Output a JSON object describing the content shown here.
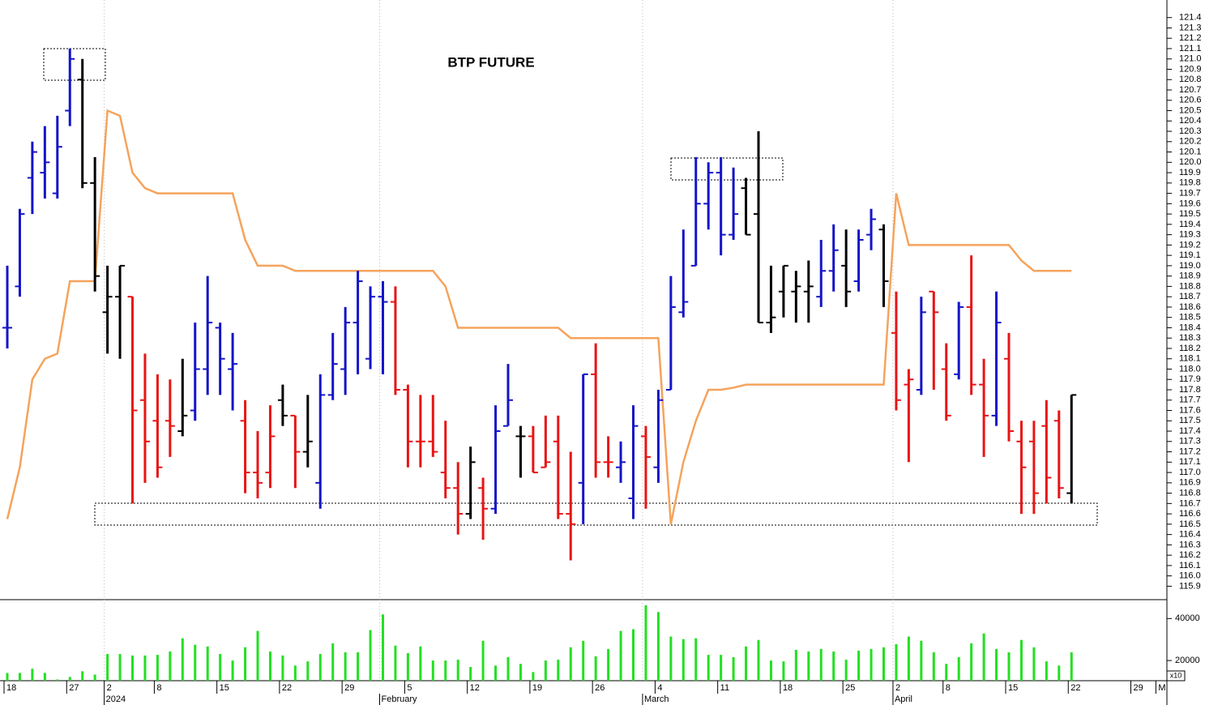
{
  "chart_data": [
    {
      "type": "ohlc",
      "title": "BTP FUTURE",
      "categories": [
        "18",
        null,
        null,
        null,
        null,
        "27",
        null,
        null,
        "2",
        null,
        null,
        null,
        "8",
        null,
        null,
        null,
        null,
        "15",
        null,
        null,
        null,
        null,
        "22",
        null,
        null,
        null,
        null,
        "29",
        null,
        null,
        null,
        null,
        "5",
        null,
        null,
        null,
        null,
        "12",
        null,
        null,
        null,
        null,
        "19",
        null,
        null,
        null,
        null,
        "26",
        null,
        null,
        null,
        null,
        "4",
        null,
        null,
        null,
        null,
        "11",
        null,
        null,
        null,
        null,
        "18",
        null,
        null,
        null,
        null,
        "25",
        null,
        null,
        null,
        "2",
        null,
        null,
        null,
        "8",
        null,
        null,
        null,
        null,
        "15",
        null,
        null,
        null,
        null,
        "22",
        null,
        null,
        null,
        null,
        "29",
        null,
        "M"
      ],
      "months": [
        null,
        null,
        null,
        null,
        null,
        null,
        null,
        null,
        "2024",
        null,
        null,
        null,
        null,
        null,
        null,
        null,
        null,
        null,
        null,
        null,
        null,
        null,
        null,
        null,
        null,
        null,
        null,
        null,
        null,
        null,
        "February",
        null,
        null,
        null,
        null,
        null,
        null,
        null,
        null,
        null,
        null,
        null,
        null,
        null,
        null,
        null,
        null,
        null,
        null,
        null,
        null,
        "March",
        null,
        null,
        null,
        null,
        null,
        null,
        null,
        null,
        null,
        null,
        null,
        null,
        null,
        null,
        null,
        null,
        null,
        null,
        null,
        "April",
        null,
        null,
        null,
        null,
        null,
        null,
        null,
        null,
        null,
        null,
        null,
        null,
        null,
        null,
        null,
        null,
        null,
        null,
        null,
        null,
        null
      ],
      "open": [
        118.4,
        118.8,
        119.85,
        119.9,
        119.7,
        120.5,
        120.8,
        119.8,
        118.55,
        118.7,
        118.7,
        117.7,
        117.5,
        117.5,
        117.4,
        117.6,
        118.0,
        118.4,
        118.0,
        117.5,
        117.0,
        117.0,
        117.7,
        117.55,
        117.2,
        116.9,
        117.75,
        118.0,
        118.45,
        118.1,
        118.7,
        118.65,
        117.8,
        117.3,
        117.3,
        117.0,
        116.85,
        116.6,
        116.85,
        116.65,
        117.45,
        117.35,
        117.35,
        117.05,
        117.3,
        116.6,
        116.9,
        117.95,
        117.1,
        117.05,
        116.75,
        117.35,
        117.05,
        117.8,
        118.55,
        119.0,
        119.6,
        119.9,
        119.3,
        119.75,
        119.5,
        118.45,
        118.75,
        118.75,
        118.75,
        118.7,
        118.95,
        119.0,
        118.85,
        119.3,
        119.35,
        118.35,
        117.85,
        117.8,
        118.75,
        118.0,
        117.95,
        118.6,
        117.85,
        117.55,
        118.1,
        117.3,
        117.3,
        117.45,
        117.5,
        116.8,
        null,
        null,
        null,
        null,
        null,
        null,
        null
      ],
      "high": [
        119.0,
        119.55,
        120.2,
        120.35,
        120.45,
        121.1,
        121.0,
        120.05,
        119.0,
        119.0,
        118.7,
        118.15,
        117.95,
        117.9,
        118.1,
        118.45,
        118.9,
        118.45,
        118.35,
        117.7,
        117.4,
        117.65,
        117.85,
        117.55,
        117.75,
        117.95,
        118.35,
        118.6,
        118.95,
        118.8,
        118.85,
        118.8,
        117.85,
        117.75,
        117.75,
        117.5,
        117.1,
        117.25,
        116.95,
        117.65,
        118.05,
        117.45,
        117.45,
        117.55,
        117.55,
        117.2,
        117.95,
        118.25,
        117.35,
        117.3,
        117.65,
        117.45,
        117.8,
        118.9,
        119.35,
        120.05,
        120.0,
        120.05,
        119.95,
        119.85,
        120.3,
        119.0,
        119.0,
        118.95,
        119.05,
        119.25,
        119.4,
        119.35,
        119.35,
        119.55,
        119.4,
        118.75,
        118.0,
        118.7,
        118.75,
        118.25,
        118.65,
        119.1,
        118.1,
        118.75,
        118.35,
        117.5,
        117.5,
        117.7,
        117.6,
        117.75,
        null,
        null,
        null,
        null,
        null,
        null,
        null
      ],
      "low": [
        118.2,
        118.7,
        119.5,
        119.65,
        119.65,
        120.35,
        119.75,
        118.75,
        118.15,
        118.1,
        116.7,
        116.9,
        116.95,
        117.15,
        117.35,
        117.5,
        117.75,
        117.75,
        117.6,
        116.8,
        116.75,
        116.85,
        117.45,
        116.85,
        117.05,
        116.65,
        117.7,
        117.75,
        117.95,
        118.0,
        117.95,
        117.75,
        117.05,
        117.05,
        117.15,
        116.75,
        116.4,
        116.55,
        116.35,
        116.6,
        117.45,
        116.95,
        117.0,
        117.05,
        116.55,
        116.15,
        116.5,
        116.95,
        116.95,
        116.9,
        116.55,
        116.65,
        116.9,
        117.8,
        118.5,
        119.0,
        119.35,
        119.1,
        119.25,
        119.3,
        118.45,
        118.35,
        118.5,
        118.45,
        118.45,
        118.6,
        118.75,
        118.6,
        118.75,
        119.15,
        118.6,
        117.6,
        117.1,
        117.75,
        117.8,
        117.5,
        117.9,
        117.75,
        117.15,
        117.45,
        117.3,
        116.6,
        116.6,
        116.7,
        116.75,
        116.7,
        null,
        null,
        null,
        null,
        null,
        null,
        null
      ],
      "close": [
        118.4,
        119.5,
        120.1,
        120.0,
        120.15,
        121.0,
        119.8,
        118.9,
        118.7,
        119.0,
        117.6,
        117.3,
        117.05,
        117.45,
        117.55,
        118.0,
        118.45,
        118.1,
        118.05,
        117.0,
        116.9,
        117.35,
        117.55,
        117.2,
        117.3,
        117.75,
        118.05,
        118.45,
        118.85,
        118.7,
        118.65,
        117.8,
        117.3,
        117.3,
        117.2,
        116.85,
        116.6,
        117.1,
        116.65,
        117.4,
        117.7,
        117.35,
        117.0,
        117.1,
        116.6,
        116.5,
        117.95,
        117.1,
        117.1,
        117.1,
        117.45,
        117.15,
        117.7,
        118.6,
        118.65,
        119.6,
        119.9,
        119.3,
        119.5,
        119.3,
        118.45,
        118.5,
        119.0,
        118.8,
        118.8,
        118.95,
        119.15,
        118.75,
        119.25,
        119.45,
        118.85,
        117.7,
        117.9,
        118.55,
        118.55,
        117.55,
        118.6,
        117.85,
        117.55,
        118.45,
        117.4,
        117.05,
        116.8,
        116.95,
        116.85,
        117.75,
        null,
        null,
        null,
        null,
        null,
        null,
        null
      ],
      "colors": [
        "#1414c8",
        "#1414c8",
        "#1414c8",
        "#1414c8",
        "#1414c8",
        "#1414c8",
        "#000000",
        "#000000",
        "#000000",
        "#000000",
        "#e81414",
        "#e81414",
        "#e81414",
        "#e81414",
        "#000000",
        "#1414c8",
        "#1414c8",
        "#1414c8",
        "#1414c8",
        "#e81414",
        "#e81414",
        "#e81414",
        "#000000",
        "#e81414",
        "#000000",
        "#1414c8",
        "#1414c8",
        "#1414c8",
        "#1414c8",
        "#1414c8",
        "#1414c8",
        "#e81414",
        "#e81414",
        "#e81414",
        "#e81414",
        "#e81414",
        "#e81414",
        "#000000",
        "#e81414",
        "#1414c8",
        "#1414c8",
        "#000000",
        "#e81414",
        "#e81414",
        "#e81414",
        "#e81414",
        "#1414c8",
        "#e81414",
        "#e81414",
        "#1414c8",
        "#1414c8",
        "#e81414",
        "#1414c8",
        "#1414c8",
        "#1414c8",
        "#1414c8",
        "#1414c8",
        "#1414c8",
        "#1414c8",
        "#000000",
        "#000000",
        "#000000",
        "#000000",
        "#000000",
        "#000000",
        "#1414c8",
        "#1414c8",
        "#000000",
        "#1414c8",
        "#1414c8",
        "#000000",
        "#e81414",
        "#e81414",
        "#1414c8",
        "#e81414",
        "#e81414",
        "#1414c8",
        "#e81414",
        "#e81414",
        "#1414c8",
        "#e81414",
        "#e81414",
        "#e81414",
        "#e81414",
        "#e81414",
        "#000000",
        null,
        null,
        null,
        null,
        null,
        null,
        null
      ],
      "overlay": {
        "color": "#f5a35c",
        "values": [
          116.55,
          117.05,
          117.9,
          118.1,
          118.15,
          118.85,
          118.85,
          118.85,
          120.5,
          120.45,
          119.9,
          119.75,
          119.7,
          119.7,
          119.7,
          119.7,
          119.7,
          119.7,
          119.7,
          119.25,
          119.0,
          119.0,
          119.0,
          118.95,
          118.95,
          118.95,
          118.95,
          118.95,
          118.95,
          118.95,
          118.95,
          118.95,
          118.95,
          118.95,
          118.95,
          118.8,
          118.4,
          118.4,
          118.4,
          118.4,
          118.4,
          118.4,
          118.4,
          118.4,
          118.4,
          118.3,
          118.3,
          118.3,
          118.3,
          118.3,
          118.3,
          118.3,
          118.3,
          116.5,
          117.1,
          117.5,
          117.8,
          117.8,
          117.82,
          117.85,
          117.85,
          117.85,
          117.85,
          117.85,
          117.85,
          117.85,
          117.85,
          117.85,
          117.85,
          117.85,
          117.85,
          119.7,
          119.2,
          119.2,
          119.2,
          119.2,
          119.2,
          119.2,
          119.2,
          119.2,
          119.2,
          119.05,
          118.95,
          118.95,
          118.95,
          118.95,
          null,
          null,
          null,
          null,
          null,
          null,
          null
        ]
      },
      "ylim": [
        115.77,
        121.57
      ],
      "yticks": [
        115.9,
        {
          "value": 116.0,
          "label": "116.0"
        },
        116.1,
        116.2,
        116.3,
        116.4,
        116.5,
        116.6,
        116.7,
        116.8,
        116.9,
        {
          "value": 117.0,
          "label": "117.0"
        },
        117.1,
        117.2,
        117.3,
        117.4,
        117.5,
        117.6,
        117.7,
        117.8,
        117.9,
        {
          "value": 118.0,
          "label": "118.0"
        },
        118.1,
        118.2,
        118.3,
        118.4,
        118.5,
        118.6,
        118.7,
        118.8,
        118.9,
        {
          "value": 119.0,
          "label": "119.0"
        },
        119.1,
        119.2,
        119.3,
        119.4,
        119.5,
        119.6,
        119.7,
        119.8,
        119.9,
        {
          "value": 120.0,
          "label": "120.0"
        },
        120.1,
        120.2,
        120.3,
        120.4,
        120.5,
        120.6,
        120.7,
        120.8,
        120.9,
        {
          "value": 121.0,
          "label": "121.0"
        },
        121.1,
        121.2,
        121.3,
        121.4
      ]
    },
    {
      "type": "bar",
      "color": "#22e022",
      "unit_label": "x10",
      "values": [
        14100,
        14100,
        16100,
        14100,
        11000,
        12200,
        14900,
        13300,
        23100,
        23100,
        22400,
        22400,
        22700,
        24300,
        30600,
        27500,
        26700,
        23100,
        20000,
        26300,
        34100,
        24300,
        22400,
        17600,
        19600,
        23100,
        28200,
        23900,
        23900,
        34500,
        41950,
        27100,
        23500,
        26700,
        20000,
        20000,
        20400,
        16900,
        29400,
        17600,
        21600,
        18400,
        14500,
        20000,
        20400,
        26300,
        29400,
        22000,
        25500,
        34100,
        34900,
        46300,
        43100,
        31400,
        30200,
        30600,
        22700,
        22700,
        21600,
        26700,
        29800,
        20000,
        19600,
        25100,
        24300,
        25500,
        24300,
        20400,
        24700,
        25500,
        26300,
        27800,
        31400,
        29400,
        23900,
        18400,
        21600,
        28200,
        32900,
        25500,
        23900,
        29800,
        26300,
        19600,
        17600,
        23900,
        null,
        null,
        null,
        null,
        null,
        null,
        null
      ],
      "ylim": [
        10400,
        48600
      ],
      "yticks": [
        20000,
        40000
      ]
    }
  ]
}
